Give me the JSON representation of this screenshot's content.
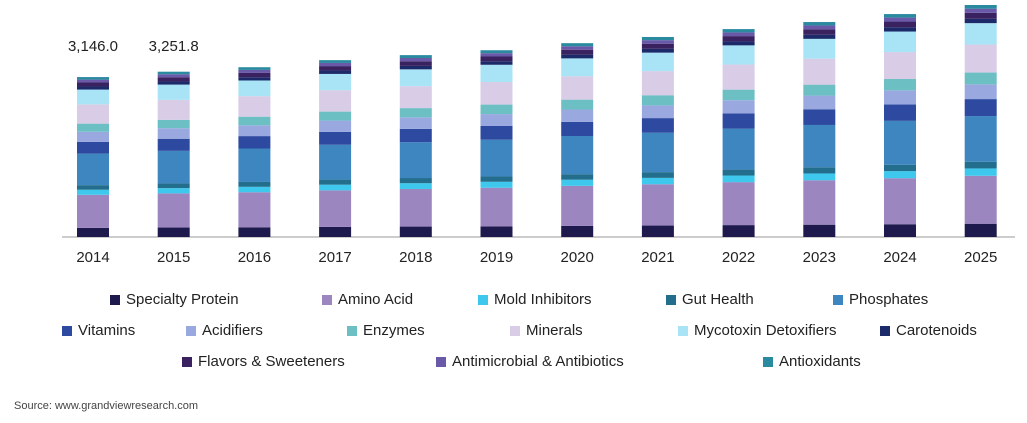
{
  "chart_data": {
    "type": "stacked_bar",
    "categories": [
      "2014",
      "2015",
      "2016",
      "2017",
      "2018",
      "2019",
      "2020",
      "2021",
      "2022",
      "2023",
      "2024",
      "2025"
    ],
    "totals": [
      3146.0,
      3251.8,
      null,
      null,
      null,
      null,
      null,
      null,
      null,
      null,
      null,
      null
    ],
    "total_labels": [
      "3,146.0",
      "3,251.8",
      null,
      null,
      null,
      null,
      null,
      null,
      null,
      null,
      null,
      null
    ],
    "series": [
      {
        "name": "Specialty Protein",
        "color": "#1f1a4d",
        "values": [
          180,
          186,
          191,
          199,
          205,
          210,
          218,
          225,
          234,
          242,
          251,
          261
        ]
      },
      {
        "name": "Amino Acid",
        "color": "#9b86c0",
        "values": [
          650,
          672,
          690,
          719,
          739,
          759,
          788,
          813,
          845,
          874,
          906,
          943
        ]
      },
      {
        "name": "Mold Inhibitors",
        "color": "#3fc8ee",
        "values": [
          100,
          103,
          106,
          111,
          114,
          117,
          121,
          125,
          130,
          134,
          139,
          145
        ]
      },
      {
        "name": "Gut Health",
        "color": "#236e8c",
        "values": [
          90,
          93,
          96,
          100,
          102,
          105,
          109,
          113,
          117,
          121,
          125,
          131
        ]
      },
      {
        "name": "Phosphates",
        "color": "#3e86c0",
        "values": [
          620,
          641,
          658,
          686,
          705,
          724,
          751,
          775,
          806,
          833,
          864,
          899
        ]
      },
      {
        "name": "Vitamins",
        "color": "#2e4aa0",
        "values": [
          230,
          238,
          244,
          254,
          262,
          269,
          279,
          288,
          299,
          309,
          321,
          334
        ]
      },
      {
        "name": "Acidifiers",
        "color": "#9aa8e0",
        "values": [
          200,
          207,
          212,
          221,
          227,
          234,
          242,
          250,
          260,
          269,
          279,
          290
        ]
      },
      {
        "name": "Enzymes",
        "color": "#6cc0c4",
        "values": [
          160,
          165,
          170,
          177,
          182,
          187,
          194,
          200,
          208,
          215,
          223,
          232
        ]
      },
      {
        "name": "Minerals",
        "color": "#d8cce6",
        "values": [
          380,
          393,
          404,
          420,
          432,
          444,
          461,
          475,
          494,
          511,
          530,
          551
        ]
      },
      {
        "name": "Mycotoxin Detoxifiers",
        "color": "#a9e4f6",
        "values": [
          290,
          300,
          308,
          321,
          330,
          339,
          351,
          363,
          377,
          390,
          404,
          421
        ]
      },
      {
        "name": "Carotenoids",
        "color": "#1c2a6a",
        "values": [
          60,
          62,
          64,
          66,
          68,
          70,
          73,
          75,
          78,
          81,
          84,
          87
        ]
      },
      {
        "name": "Flavors & Sweeteners",
        "color": "#3a2260",
        "values": [
          80,
          83,
          85,
          88,
          91,
          93,
          97,
          100,
          104,
          108,
          112,
          116
        ]
      },
      {
        "name": "Antimicrobial & Antibiotics",
        "color": "#6a58a8",
        "values": [
          56,
          58,
          59,
          62,
          64,
          65,
          68,
          70,
          73,
          75,
          78,
          81
        ]
      },
      {
        "name": "Antioxidants",
        "color": "#2a8aa0",
        "values": [
          50,
          50.8,
          53,
          55,
          57,
          58,
          61,
          63,
          65,
          67,
          70,
          73
        ]
      }
    ],
    "source": "Source: www.grandviewresearch.com"
  }
}
